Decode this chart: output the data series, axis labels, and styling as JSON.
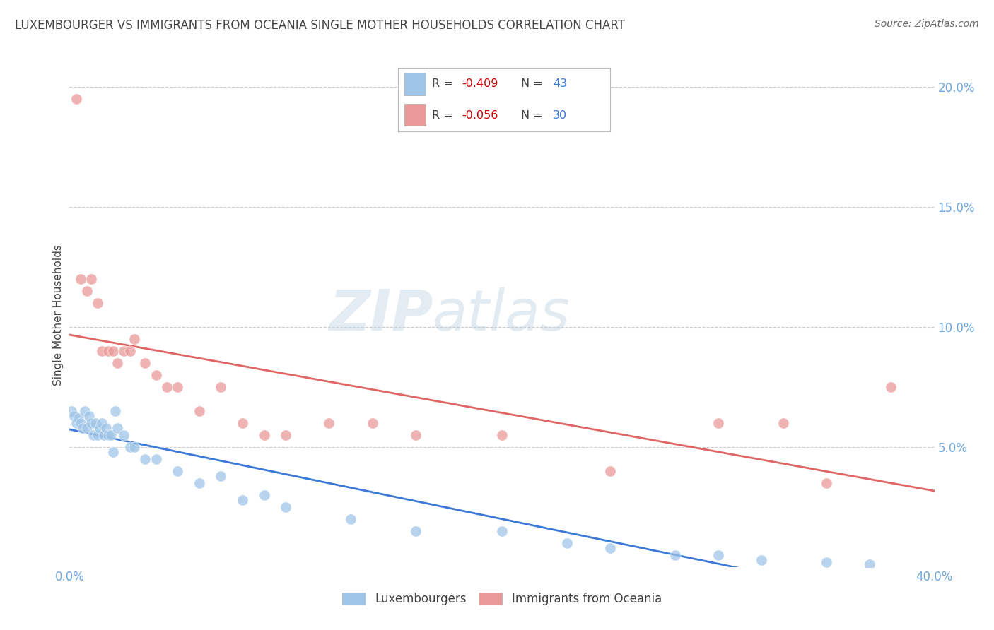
{
  "title": "LUXEMBOURGER VS IMMIGRANTS FROM OCEANIA SINGLE MOTHER HOUSEHOLDS CORRELATION CHART",
  "source": "Source: ZipAtlas.com",
  "ylabel": "Single Mother Households",
  "xlim": [
    0.0,
    0.4
  ],
  "ylim": [
    0.0,
    0.21
  ],
  "yticks": [
    0.05,
    0.1,
    0.15,
    0.2
  ],
  "ytick_labels": [
    "5.0%",
    "10.0%",
    "15.0%",
    "20.0%"
  ],
  "xtick_labels": [
    "0.0%",
    "40.0%"
  ],
  "xtick_positions": [
    0.0,
    0.4
  ],
  "color_blue": "#9fc5e8",
  "color_pink": "#ea9999",
  "color_line_blue": "#3c78d8",
  "color_line_pink": "#e06666",
  "watermark_zip": "ZIP",
  "watermark_atlas": "atlas",
  "title_color": "#434343",
  "source_color": "#666666",
  "tick_color": "#6fa8dc",
  "grid_color": "#cccccc",
  "legend_r1_val": "-0.409",
  "legend_n1_val": "43",
  "legend_r2_val": "-0.056",
  "legend_n2_val": "30",
  "r_label_color": "#cc0000",
  "n_label_color": "#3c78d8",
  "luxembourger_x": [
    0.001,
    0.002,
    0.003,
    0.004,
    0.005,
    0.006,
    0.007,
    0.008,
    0.009,
    0.01,
    0.011,
    0.012,
    0.013,
    0.014,
    0.015,
    0.016,
    0.017,
    0.018,
    0.019,
    0.02,
    0.021,
    0.022,
    0.025,
    0.028,
    0.03,
    0.035,
    0.04,
    0.05,
    0.06,
    0.07,
    0.08,
    0.09,
    0.1,
    0.13,
    0.16,
    0.2,
    0.23,
    0.25,
    0.28,
    0.3,
    0.32,
    0.35,
    0.37
  ],
  "luxembourger_y": [
    0.065,
    0.063,
    0.06,
    0.062,
    0.06,
    0.058,
    0.065,
    0.058,
    0.063,
    0.06,
    0.055,
    0.06,
    0.055,
    0.058,
    0.06,
    0.055,
    0.058,
    0.055,
    0.055,
    0.048,
    0.065,
    0.058,
    0.055,
    0.05,
    0.05,
    0.045,
    0.045,
    0.04,
    0.035,
    0.038,
    0.028,
    0.03,
    0.025,
    0.02,
    0.015,
    0.015,
    0.01,
    0.008,
    0.005,
    0.005,
    0.003,
    0.002,
    0.001
  ],
  "oceania_x": [
    0.003,
    0.005,
    0.008,
    0.01,
    0.013,
    0.015,
    0.018,
    0.02,
    0.022,
    0.025,
    0.028,
    0.03,
    0.035,
    0.04,
    0.045,
    0.05,
    0.06,
    0.07,
    0.08,
    0.09,
    0.1,
    0.12,
    0.14,
    0.16,
    0.2,
    0.25,
    0.3,
    0.33,
    0.35,
    0.38
  ],
  "oceania_y": [
    0.195,
    0.12,
    0.115,
    0.12,
    0.11,
    0.09,
    0.09,
    0.09,
    0.085,
    0.09,
    0.09,
    0.095,
    0.085,
    0.08,
    0.075,
    0.075,
    0.065,
    0.075,
    0.06,
    0.055,
    0.055,
    0.06,
    0.06,
    0.055,
    0.055,
    0.04,
    0.06,
    0.06,
    0.035,
    0.075
  ]
}
